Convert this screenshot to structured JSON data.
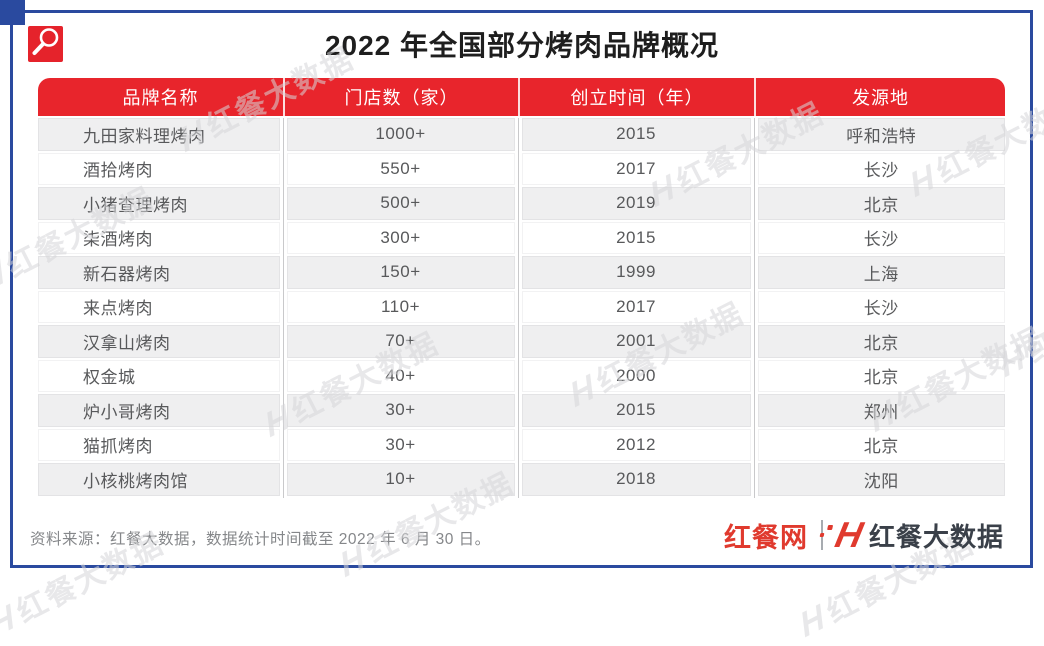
{
  "title": "2022 年全国部分烤肉品牌概况",
  "chart_data": {
    "type": "table",
    "title": "2022 年全国部分烤肉品牌概况",
    "columns": [
      "品牌名称",
      "门店数（家）",
      "创立时间（年）",
      "发源地"
    ],
    "rows": [
      [
        "九田家料理烤肉",
        "1000+",
        "2015",
        "呼和浩特"
      ],
      [
        "酒拾烤肉",
        "550+",
        "2017",
        "长沙"
      ],
      [
        "小猪查理烤肉",
        "500+",
        "2019",
        "北京"
      ],
      [
        "柒酒烤肉",
        "300+",
        "2015",
        "长沙"
      ],
      [
        "新石器烤肉",
        "150+",
        "1999",
        "上海"
      ],
      [
        "来点烤肉",
        "110+",
        "2017",
        "长沙"
      ],
      [
        "汉拿山烤肉",
        "70+",
        "2001",
        "北京"
      ],
      [
        "权金城",
        "40+",
        "2000",
        "北京"
      ],
      [
        "炉小哥烤肉",
        "30+",
        "2015",
        "郑州"
      ],
      [
        "猫抓烤肉",
        "30+",
        "2012",
        "北京"
      ],
      [
        "小核桃烤肉馆",
        "10+",
        "2018",
        "沈阳"
      ]
    ]
  },
  "footer": {
    "source_note": "资料来源：红餐大数据，数据统计时间截至 2022 年 6 月 30 日。",
    "brand_left": "红餐网",
    "brand_right": "红餐大数据"
  },
  "watermark": {
    "text": "红餐大数据",
    "h_mark": "H"
  },
  "colors": {
    "header_red": "#e8252c",
    "icon_red": "#e5232b",
    "frame_blue": "#2a4a9f",
    "row_alt_gray": "#efeff0",
    "cell_text": "#58595b",
    "note_gray": "#85878a",
    "brand_red": "#e03a2e",
    "brand_dark": "#3a4049"
  }
}
